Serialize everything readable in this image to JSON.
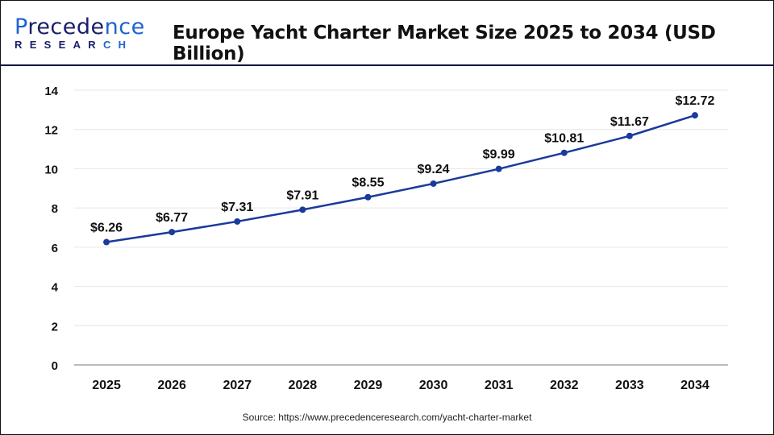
{
  "logo": {
    "line1_a": "P",
    "line1_b": "recede",
    "line1_c": "nce",
    "line2_a": "RESEAR",
    "line2_b": "CH"
  },
  "title": "Europe Yacht Charter Market Size 2025 to 2034 (USD Billion)",
  "source": "Source: https://www.precedenceresearch.com/yacht-charter-market",
  "colors": {
    "line": "#1a3a9c",
    "header_rule": "#0d1440",
    "grid": "#e6e6e6"
  },
  "chart_data": {
    "type": "line",
    "title": "Europe Yacht Charter Market Size 2025 to 2034 (USD Billion)",
    "categories": [
      "2025",
      "2026",
      "2027",
      "2028",
      "2029",
      "2030",
      "2031",
      "2032",
      "2033",
      "2034"
    ],
    "values": [
      6.26,
      6.77,
      7.31,
      7.91,
      8.55,
      9.24,
      9.99,
      10.81,
      11.67,
      12.72
    ],
    "data_labels": [
      "$6.26",
      "$6.77",
      "$7.31",
      "$7.91",
      "$8.55",
      "$9.24",
      "$9.99",
      "$10.81",
      "$11.67",
      "$12.72"
    ],
    "yticks": [
      "0",
      "2",
      "4",
      "6",
      "8",
      "10",
      "12",
      "14"
    ],
    "ylim": [
      0,
      14
    ],
    "grid": true,
    "xlabel": "",
    "ylabel": ""
  }
}
